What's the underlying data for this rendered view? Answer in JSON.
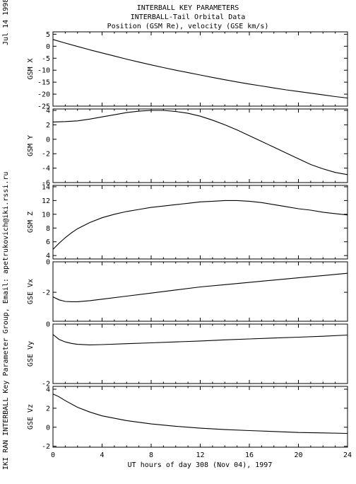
{
  "side_text": {
    "date": "Jul 14 1998",
    "credit": "IKI RAN INTERBALL Key Parameter Group, Email: apetrukovich@iki.rssi.ru"
  },
  "header": {
    "line1": "INTERBALL KEY PARAMETERS",
    "line2": "INTERBALL-Tail Orbital Data",
    "line3": "Position (GSM Re), velocity (GSE km/s)"
  },
  "xaxis": {
    "label": "UT hours of day 308 (Nov 04), 1997",
    "range": [
      0,
      24
    ],
    "ticks": [
      "0",
      "4",
      "8",
      "12",
      "16",
      "20",
      "24"
    ]
  },
  "chart_data": [
    {
      "type": "line",
      "ylabel": "GSM X",
      "ylim": [
        -25,
        6
      ],
      "yticks": [
        5,
        0,
        -5,
        -10,
        -15,
        -20,
        -25
      ],
      "x": [
        0,
        1,
        2,
        3,
        4,
        5,
        6,
        7,
        8,
        9,
        10,
        11,
        12,
        13,
        14,
        15,
        16,
        17,
        18,
        19,
        20,
        21,
        22,
        23,
        24
      ],
      "values": [
        2.8,
        1.3,
        -0.1,
        -1.5,
        -2.8,
        -4.1,
        -5.4,
        -6.6,
        -7.8,
        -8.9,
        -10.0,
        -11.0,
        -12.0,
        -13.0,
        -14.0,
        -14.9,
        -15.8,
        -16.6,
        -17.4,
        -18.2,
        -18.9,
        -19.6,
        -20.3,
        -21.0,
        -21.6
      ]
    },
    {
      "type": "line",
      "ylabel": "GSM Y",
      "ylim": [
        -6,
        4.2
      ],
      "yticks": [
        4,
        2,
        0,
        -2,
        -4,
        -6
      ],
      "x": [
        0,
        1,
        2,
        3,
        4,
        5,
        6,
        7,
        8,
        9,
        10,
        11,
        12,
        13,
        14,
        15,
        16,
        17,
        18,
        19,
        20,
        21,
        22,
        23,
        24
      ],
      "values": [
        2.4,
        2.45,
        2.55,
        2.8,
        3.1,
        3.4,
        3.7,
        3.9,
        4.0,
        4.0,
        3.85,
        3.6,
        3.2,
        2.65,
        2.0,
        1.3,
        0.5,
        -0.3,
        -1.1,
        -1.9,
        -2.7,
        -3.5,
        -4.1,
        -4.6,
        -4.9
      ]
    },
    {
      "type": "line",
      "ylabel": "GSM Z",
      "ylim": [
        3.5,
        14.2
      ],
      "yticks": [
        14,
        12,
        10,
        8,
        6,
        4
      ],
      "x": [
        0,
        0.5,
        1,
        1.5,
        2,
        3,
        4,
        5,
        6,
        7,
        8,
        9,
        10,
        11,
        12,
        13,
        14,
        15,
        16,
        17,
        18,
        19,
        20,
        21,
        22,
        23,
        24
      ],
      "values": [
        4.9,
        5.8,
        6.6,
        7.3,
        7.9,
        8.8,
        9.5,
        10.0,
        10.4,
        10.7,
        11.0,
        11.2,
        11.4,
        11.6,
        11.8,
        11.9,
        12.0,
        12.0,
        11.9,
        11.7,
        11.4,
        11.1,
        10.8,
        10.6,
        10.3,
        10.1,
        9.9
      ]
    },
    {
      "type": "line",
      "ylabel": "GSE Vx",
      "ylim": [
        -3.9,
        0
      ],
      "yticks": [
        0,
        -2
      ],
      "x": [
        0,
        0.5,
        1,
        1.5,
        2,
        3,
        4,
        6,
        8,
        10,
        12,
        14,
        16,
        18,
        20,
        22,
        24
      ],
      "values": [
        -2.3,
        -2.5,
        -2.6,
        -2.62,
        -2.62,
        -2.55,
        -2.45,
        -2.25,
        -2.05,
        -1.85,
        -1.65,
        -1.5,
        -1.35,
        -1.2,
        -1.05,
        -0.9,
        -0.75
      ]
    },
    {
      "type": "line",
      "ylabel": "GSE Vy",
      "ylim": [
        -2,
        0
      ],
      "yticks": [
        0,
        -2
      ],
      "x": [
        0,
        0.5,
        1,
        1.5,
        2,
        3,
        4,
        6,
        8,
        10,
        12,
        14,
        16,
        18,
        20,
        22,
        24
      ],
      "values": [
        -0.35,
        -0.52,
        -0.6,
        -0.65,
        -0.68,
        -0.7,
        -0.69,
        -0.66,
        -0.63,
        -0.6,
        -0.57,
        -0.53,
        -0.5,
        -0.47,
        -0.44,
        -0.41,
        -0.37
      ]
    },
    {
      "type": "line",
      "ylabel": "GSE Vz",
      "ylim": [
        -2.1,
        4.3
      ],
      "yticks": [
        4,
        2,
        0,
        -2
      ],
      "x": [
        0,
        0.5,
        1,
        2,
        3,
        4,
        6,
        8,
        10,
        12,
        14,
        16,
        18,
        20,
        22,
        24
      ],
      "values": [
        3.5,
        3.2,
        2.8,
        2.1,
        1.6,
        1.2,
        0.7,
        0.35,
        0.1,
        -0.1,
        -0.25,
        -0.35,
        -0.45,
        -0.55,
        -0.6,
        -0.65
      ]
    }
  ]
}
